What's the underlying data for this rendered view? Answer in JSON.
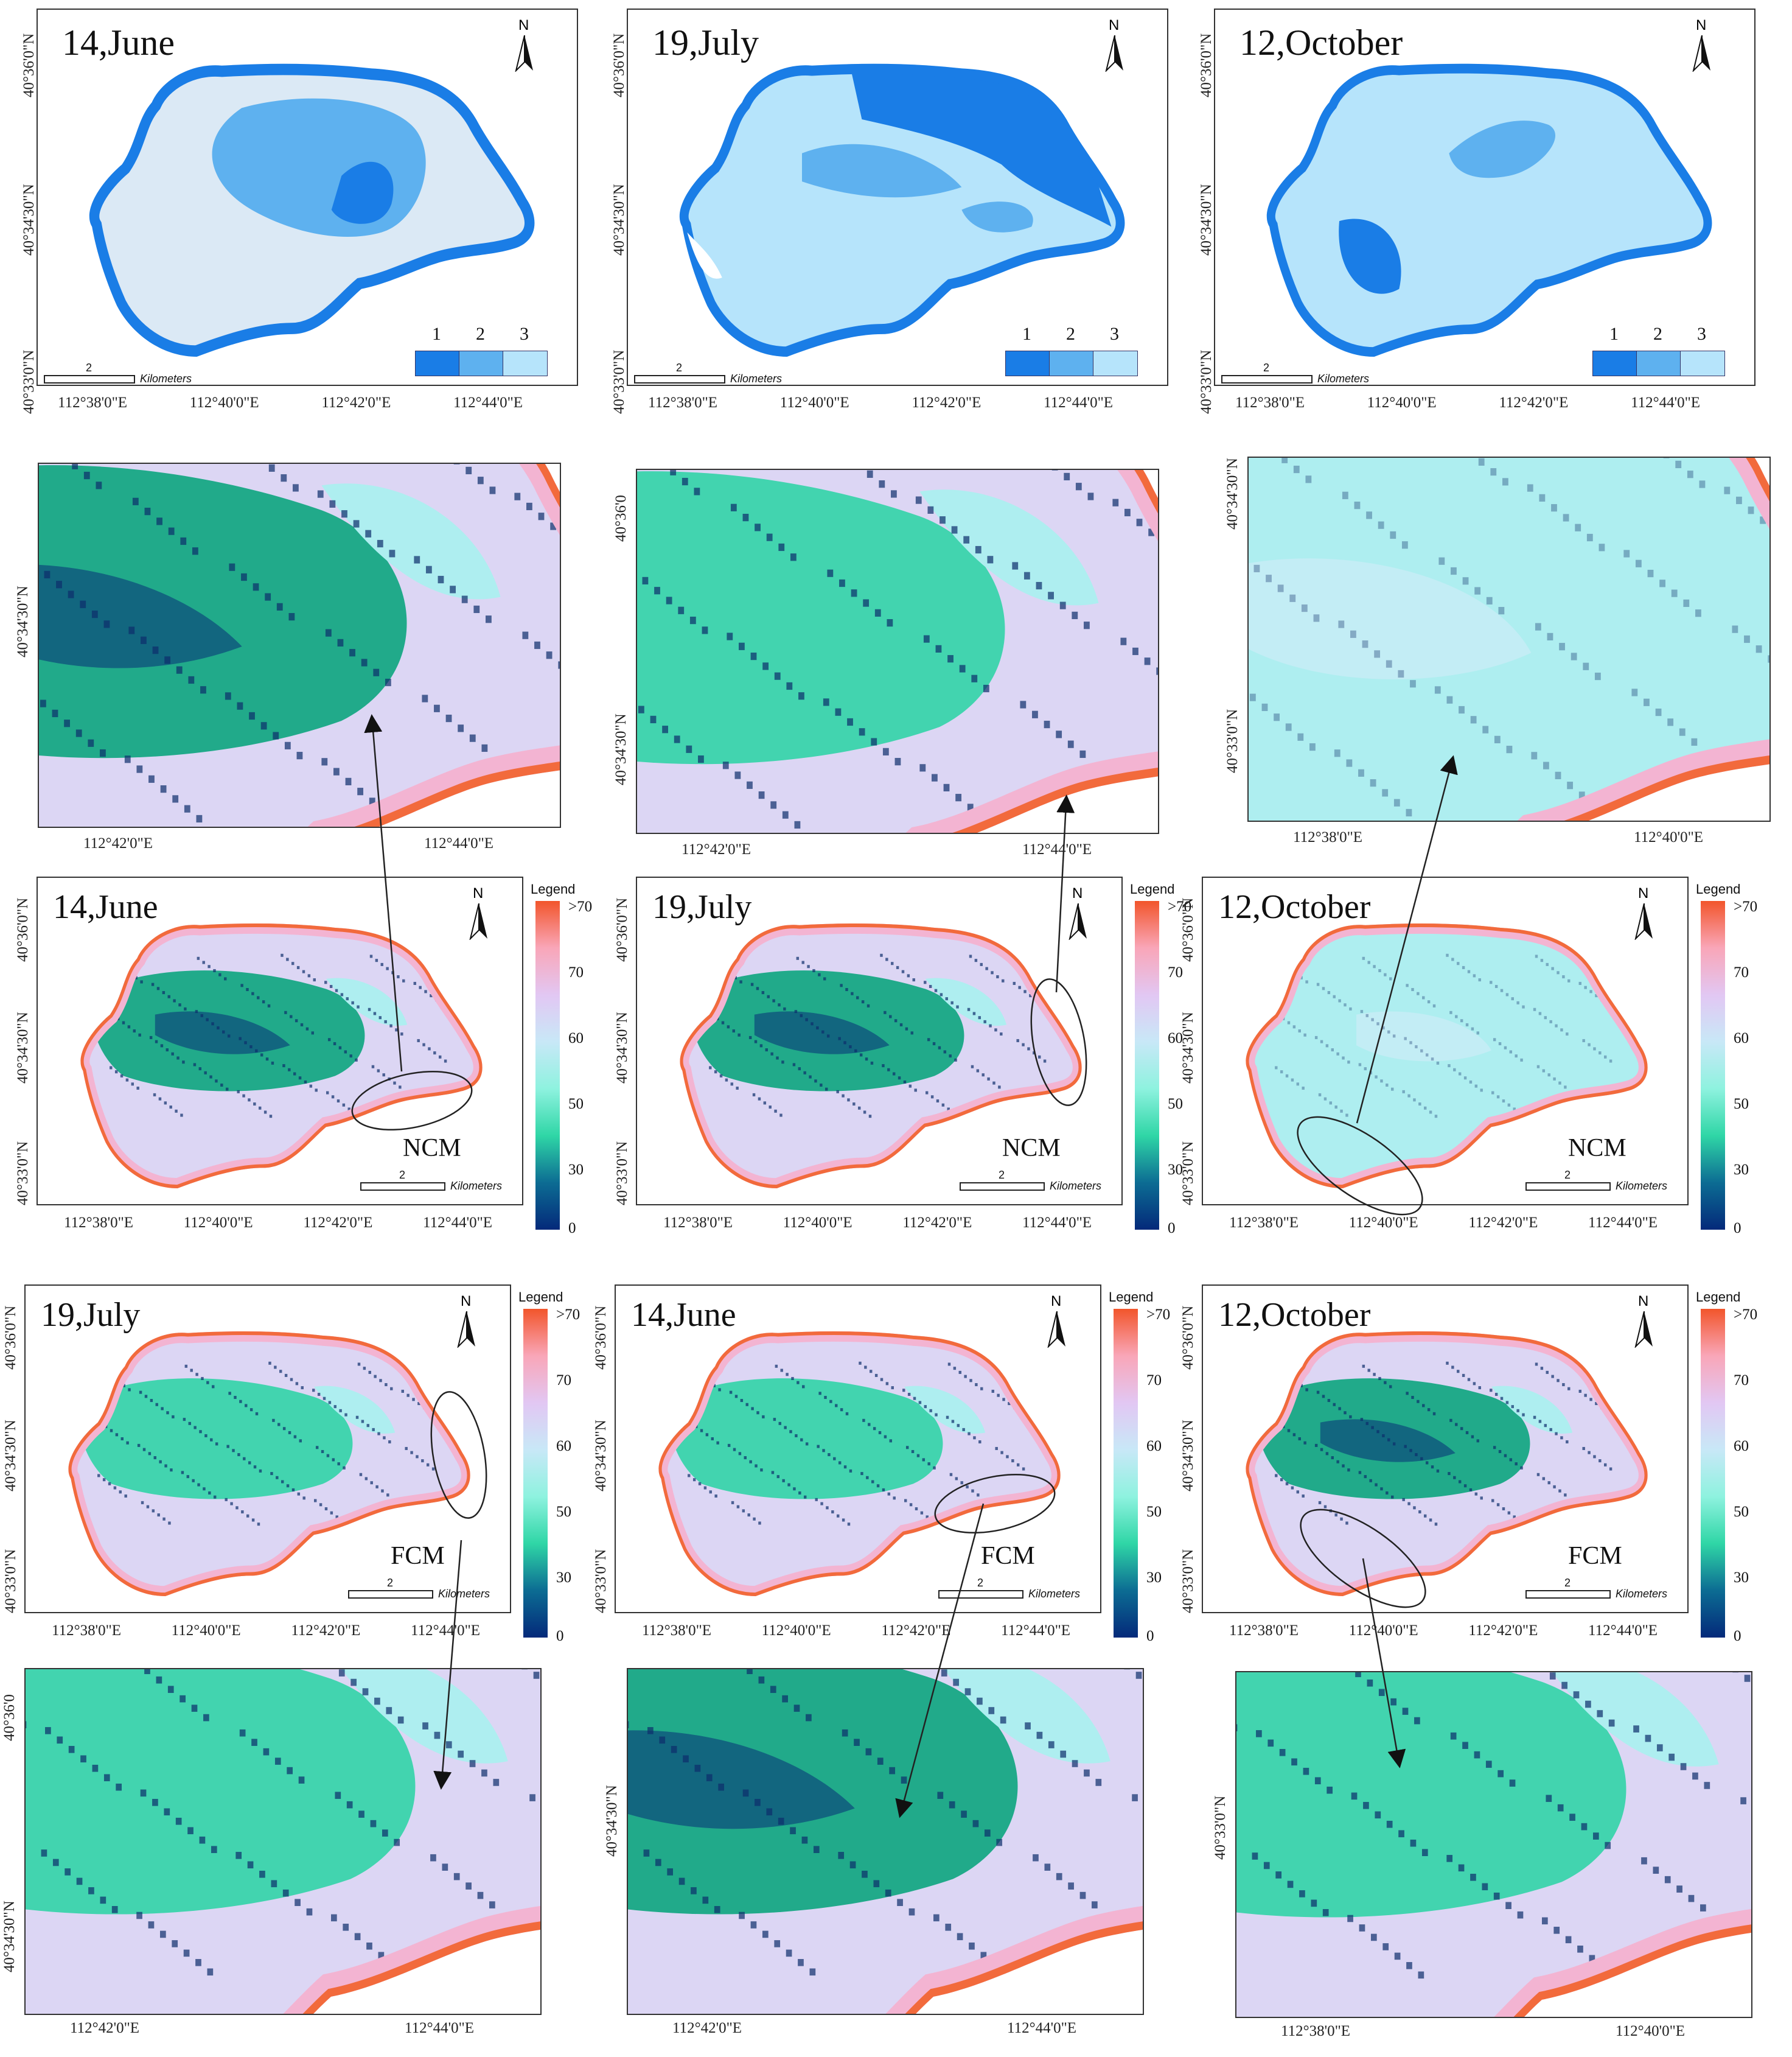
{
  "row1": {
    "panels": [
      {
        "title": "14,June"
      },
      {
        "title": "19,July"
      },
      {
        "title": "12,October"
      }
    ],
    "north": "N",
    "class_keys": [
      "1",
      "2",
      "3"
    ],
    "class_colors": [
      "#1a7de6",
      "#5eb1ef",
      "#b6e4fb"
    ],
    "scale_num": "2",
    "scale_unit": "Kilometers",
    "lon_ticks": [
      "112°38'0\"E",
      "112°40'0\"E",
      "112°42'0\"E",
      "112°44'0\"E"
    ],
    "lat_ticks": [
      "40°33'0\"N",
      "40°34'30\"N",
      "40°36'0\"N"
    ]
  },
  "zoom_top": [
    {
      "lat_ticks": [
        "40°34'30\"N"
      ],
      "lon_ticks": [
        "112°42'0\"E",
        "112°44'0\"E"
      ]
    },
    {
      "lat_ticks": [
        "40°34'30\"N",
        "40°36'0"
      ],
      "lon_ticks": [
        "112°42'0\"E",
        "112°44'0\"E"
      ]
    },
    {
      "lat_ticks": [
        "40°33'0\"N",
        "40°34'30\"N"
      ],
      "lon_ticks": [
        "112°38'0\"E",
        "112°40'0\"E"
      ]
    }
  ],
  "ncm": [
    {
      "title": "14,June",
      "method": "NCM"
    },
    {
      "title": "19,July",
      "method": "NCM"
    },
    {
      "title": "12,October",
      "method": "NCM"
    }
  ],
  "fcm": [
    {
      "title": "19,July",
      "method": "FCM"
    },
    {
      "title": "14,June",
      "method": "FCM"
    },
    {
      "title": "12,October",
      "method": "FCM"
    }
  ],
  "zoom_bottom": [
    {
      "lat_ticks": [
        "40°34'30\"N",
        "40°36'0"
      ],
      "lon_ticks": [
        "112°42'0\"E",
        "112°44'0\"E"
      ]
    },
    {
      "lat_ticks": [
        "40°34'30\"N"
      ],
      "lon_ticks": [
        "112°42'0\"E",
        "112°44'0\"E"
      ]
    },
    {
      "lat_ticks": [
        "40°33'0\"N"
      ],
      "lon_ticks": [
        "112°38'0\"E",
        "112°40'0\"E"
      ]
    }
  ],
  "legend": {
    "title": "Legend",
    "values": [
      ">70",
      "70",
      "60",
      "50",
      "30",
      "0"
    ],
    "gradient": [
      "#f2552b",
      "#f9a6b8",
      "#e2c7f3",
      "#c8e8f7",
      "#8ef2df",
      "#2fd6a6",
      "#0c6c93",
      "#04297a"
    ]
  },
  "palette": {
    "accent_red": "#f26a3c",
    "pink": "#f3b4d2",
    "lavender": "#dcd6f4",
    "cyan": "#aeeef0",
    "teal": "#39d4ab",
    "deep_teal": "#16a884",
    "navy": "#0d2e6b"
  }
}
